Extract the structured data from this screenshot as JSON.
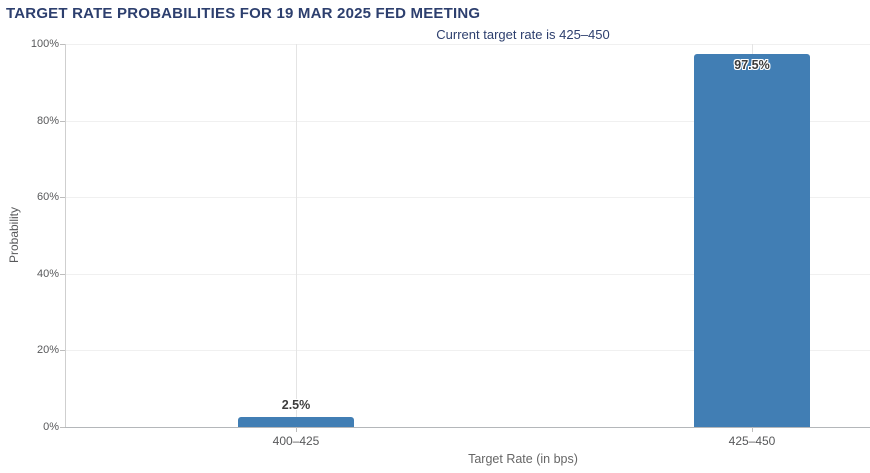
{
  "chart_data": {
    "type": "bar",
    "title": "TARGET RATE PROBABILITIES FOR 19 MAR 2025 FED MEETING",
    "subtitle": "Current target rate is 425–450",
    "categories": [
      "400–425",
      "425–450"
    ],
    "values": [
      2.5,
      97.5
    ],
    "value_labels": [
      "2.5%",
      "97.5%"
    ],
    "xlabel": "Target Rate (in bps)",
    "ylabel": "Probability",
    "ylim": [
      0,
      100
    ],
    "yticks": [
      0,
      20,
      40,
      60,
      80,
      100
    ],
    "ytick_labels": [
      "0%",
      "20%",
      "40%",
      "60%",
      "80%",
      "100%"
    ],
    "grid": true,
    "legend": false,
    "bar_color": "#417eb4",
    "title_color": "#2d3f6e",
    "axis_text_color": "#58595b"
  }
}
